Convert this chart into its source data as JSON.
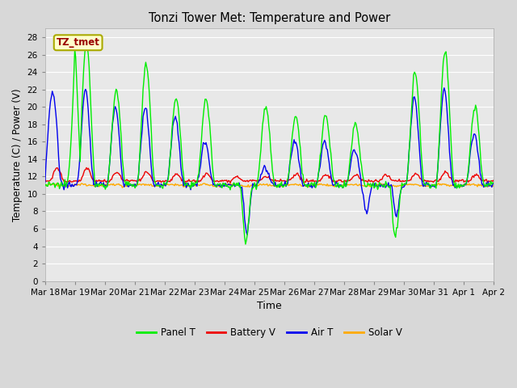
{
  "title": "Tonzi Tower Met: Temperature and Power",
  "xlabel": "Time",
  "ylabel": "Temperature (C) / Power (V)",
  "ylim": [
    0,
    29
  ],
  "yticks": [
    0,
    2,
    4,
    6,
    8,
    10,
    12,
    14,
    16,
    18,
    20,
    22,
    24,
    26,
    28
  ],
  "bg_color": "#d8d8d8",
  "plot_bg_color": "#e8e8e8",
  "grid_color": "#ffffff",
  "colors": {
    "panel_t": "#00ee00",
    "battery_v": "#ee0000",
    "air_t": "#0000ee",
    "solar_v": "#ffaa00"
  },
  "legend_label": "TZ_tmet",
  "x_tick_labels": [
    "Mar 18",
    "Mar 19",
    "Mar 20",
    "Mar 21",
    "Mar 22",
    "Mar 23",
    "Mar 24",
    "Mar 25",
    "Mar 26",
    "Mar 27",
    "Mar 28",
    "Mar 29",
    "Mar 30",
    "Mar 31",
    "Apr 1",
    "Apr 2"
  ],
  "panel_t": [
    11.0,
    11.0,
    11.0,
    27.5,
    22.0,
    14.5,
    22.0,
    25.0,
    14.5,
    21.0,
    21.0,
    17.5,
    14.0,
    14.0,
    4.5,
    20.0,
    19.5,
    10.0,
    15.0,
    15.0,
    8.0,
    19.5,
    19.0,
    19.0,
    7.0,
    18.0,
    18.5,
    5.0,
    24.0,
    26.5,
    16.0,
    20.0,
    10.0
  ],
  "air_t": [
    12.5,
    21.0,
    17.5,
    19.0,
    17.5,
    15.5,
    20.0,
    16.0,
    13.5,
    17.0,
    16.5,
    9.0,
    11.0,
    11.0,
    5.5,
    11.0,
    10.0,
    10.0,
    15.5,
    15.5,
    8.0,
    19.5,
    15.5,
    9.0,
    8.0,
    16.0,
    16.0,
    7.5,
    21.0,
    22.0,
    17.0,
    17.0,
    11.0
  ],
  "battery_v": [
    11.5,
    13.0,
    12.0,
    12.5,
    12.0,
    12.0,
    12.5,
    13.0,
    12.0,
    13.0,
    12.5,
    12.0,
    12.0,
    12.0,
    11.5,
    12.0,
    12.0,
    11.5,
    12.0,
    12.5,
    11.5,
    12.5,
    12.0,
    12.0,
    12.0,
    12.0,
    12.0,
    11.5,
    12.0,
    12.5,
    12.0,
    12.0,
    11.5
  ],
  "solar_v": [
    11.0,
    11.0,
    11.0,
    11.0,
    11.0,
    11.0,
    11.0,
    11.0,
    11.0,
    11.0,
    11.0,
    11.0,
    11.0,
    11.0,
    11.0,
    11.0,
    11.0,
    11.0,
    11.0,
    11.0,
    11.0,
    11.0,
    11.0,
    11.0,
    11.0,
    11.0,
    11.0,
    11.0,
    11.0,
    11.0,
    11.0,
    11.0,
    11.0
  ]
}
